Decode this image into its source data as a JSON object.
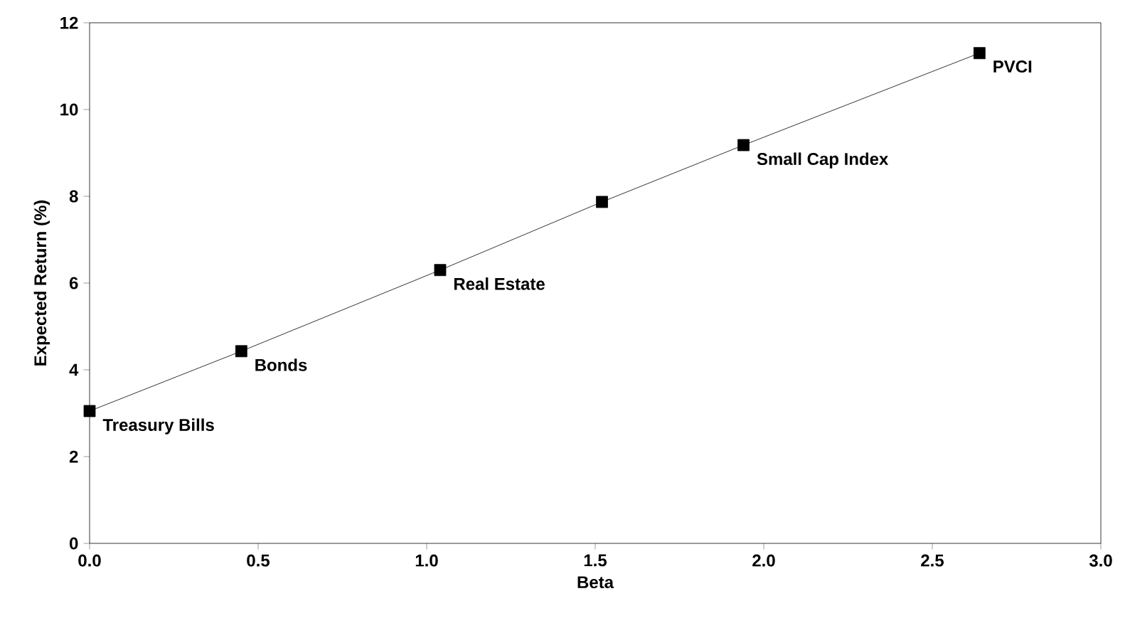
{
  "chart_data": {
    "type": "line",
    "xlabel": "Beta",
    "ylabel": "Expected Return (%)",
    "x": [
      0.0,
      0.45,
      1.04,
      1.52,
      1.94,
      2.64
    ],
    "series": [
      {
        "color": "#000000",
        "values": [
          3.05,
          4.43,
          6.3,
          7.87,
          9.18,
          11.3
        ]
      }
    ],
    "xlim": [
      0,
      3
    ],
    "xticks": [
      {
        "value": 0,
        "label": "0.0"
      },
      {
        "value": 0.5,
        "label": "0.5"
      },
      {
        "value": 1,
        "label": "1.0"
      },
      {
        "value": 1.5,
        "label": "1.5"
      },
      {
        "value": 2,
        "label": "2.0"
      },
      {
        "value": 2.5,
        "label": "2.5"
      },
      {
        "value": 3,
        "label": "3.0"
      }
    ],
    "ylim": [
      0,
      12
    ],
    "yticks": [
      0,
      2,
      4,
      6,
      8,
      10,
      12
    ],
    "marker": "square",
    "line_style": "solid",
    "annotations": [
      {
        "text": "Treasury Bills",
        "x": 0.0,
        "y": 3.05
      },
      {
        "text": "Bonds",
        "x": 0.45,
        "y": 4.43
      },
      {
        "text": "Real Estate",
        "x": 1.04,
        "y": 6.3
      },
      {
        "text": "Small Cap Index",
        "x": 1.94,
        "y": 9.18
      },
      {
        "text": "PVCI",
        "x": 2.64,
        "y": 11.3
      }
    ]
  }
}
